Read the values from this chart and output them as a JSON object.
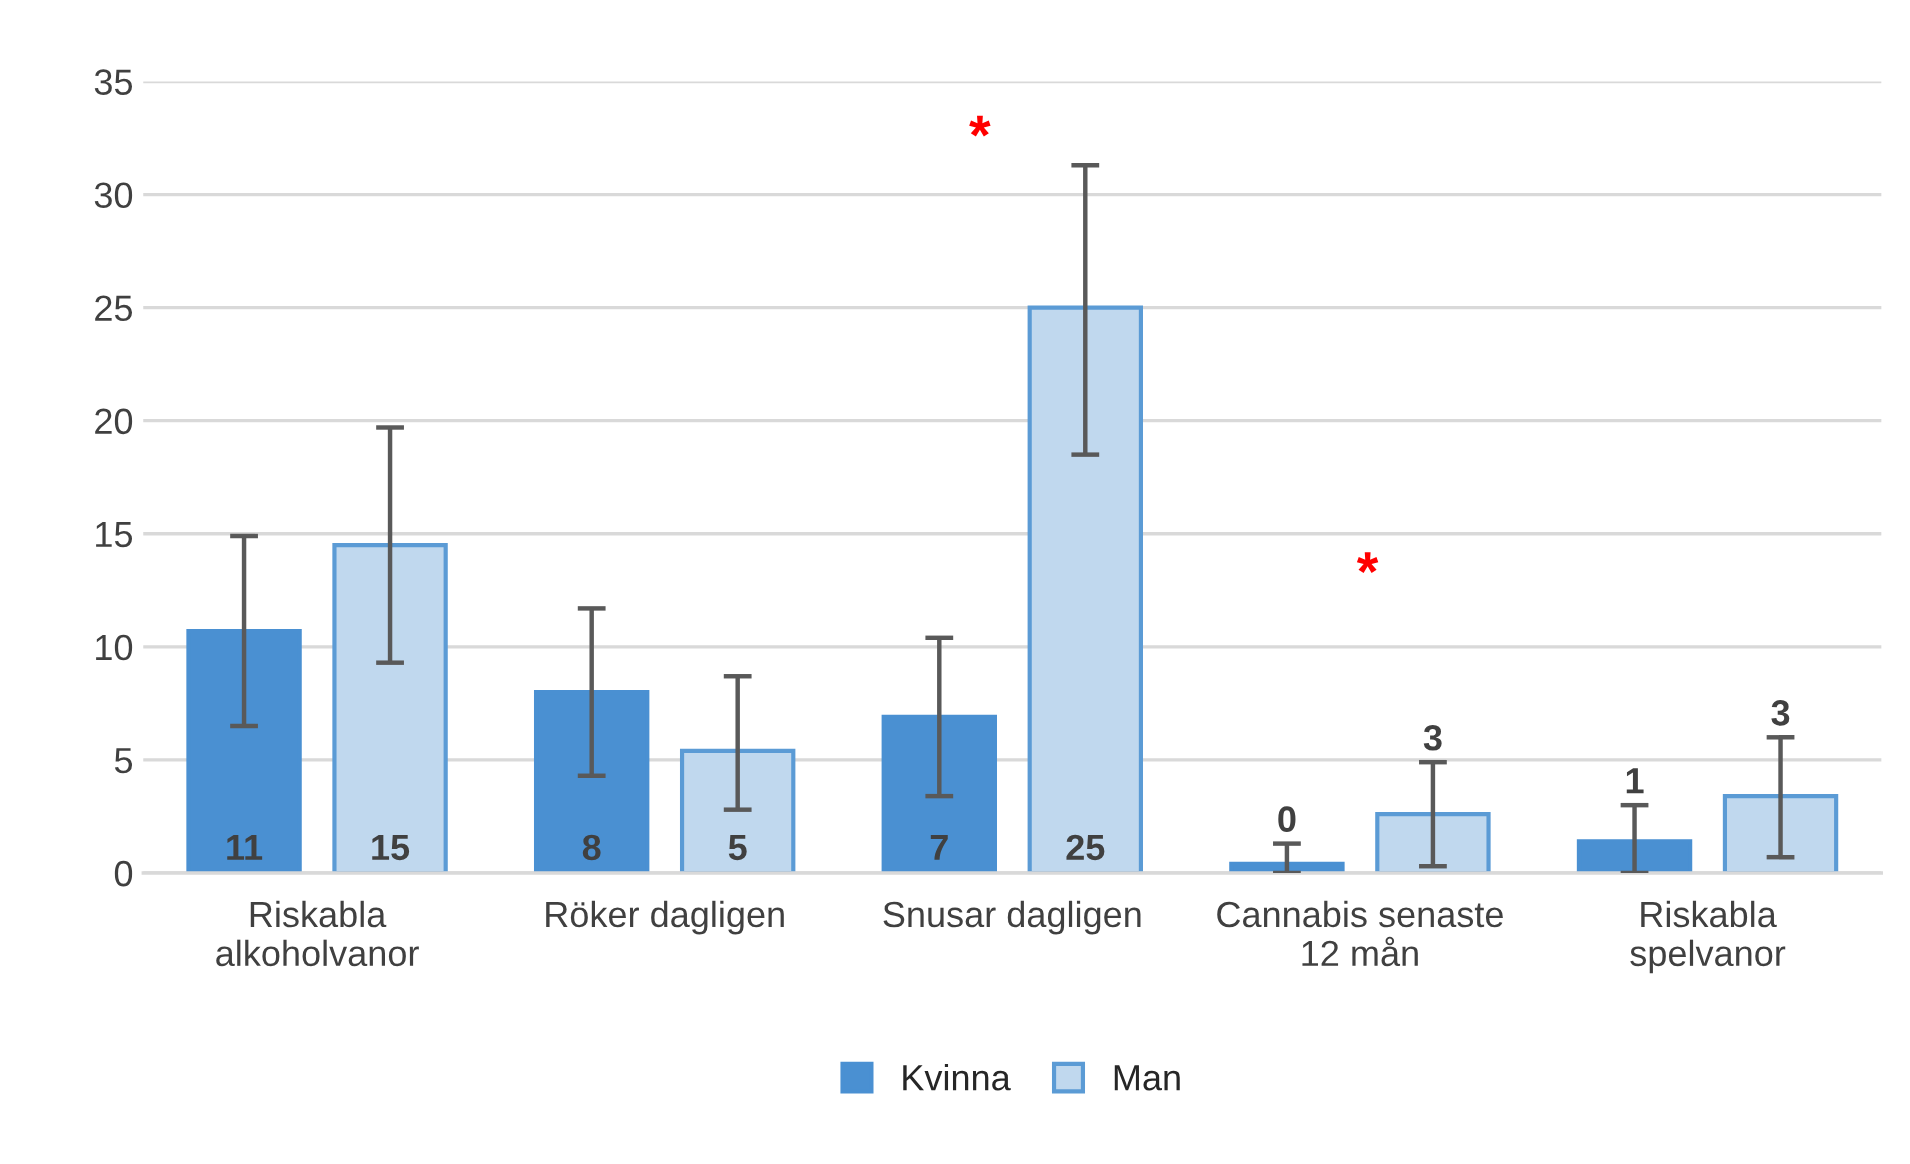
{
  "chart_data": {
    "type": "bar",
    "categories": [
      "Riskabla\nalkoholvanor",
      "Röker dagligen",
      "Snusar dagligen",
      "Cannabis senaste\n12 mån",
      "Riskabla\nspelvanor"
    ],
    "series": [
      {
        "name": "Kvinna",
        "color": "#4a90d2",
        "values": [
          10.7,
          8.0,
          6.9,
          0.4,
          1.4
        ],
        "errors": [
          [
            6.5,
            14.9
          ],
          [
            4.3,
            11.7
          ],
          [
            3.4,
            10.4
          ],
          [
            0.0,
            1.3
          ],
          [
            0.0,
            3.0
          ]
        ],
        "value_labels": [
          "11",
          "8",
          "7",
          "0",
          "1"
        ]
      },
      {
        "name": "Man",
        "color": "#c0d8ee",
        "values": [
          14.5,
          5.4,
          25.0,
          2.6,
          3.4
        ],
        "errors": [
          [
            9.3,
            19.7
          ],
          [
            2.8,
            8.7
          ],
          [
            18.5,
            31.3
          ],
          [
            0.3,
            4.9
          ],
          [
            0.7,
            6.0
          ]
        ],
        "value_labels": [
          "15",
          "5",
          "25",
          "3",
          "3"
        ]
      }
    ],
    "annotations": [
      "*",
      "*"
    ],
    "ylim": [
      0,
      35
    ],
    "yticks": [
      0,
      5,
      10,
      15,
      20,
      25,
      30,
      35
    ],
    "grid": "y",
    "legend": "bottom"
  }
}
